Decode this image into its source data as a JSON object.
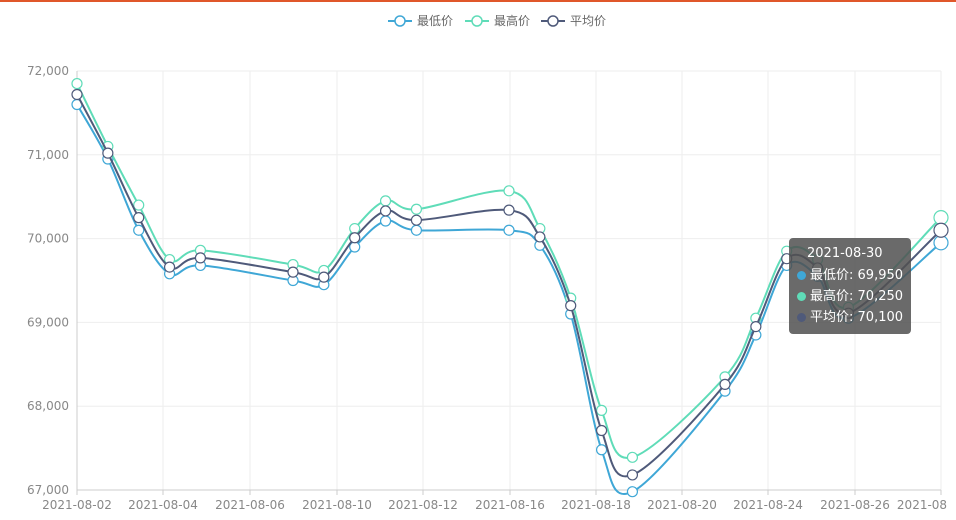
{
  "chart_data": {
    "type": "line",
    "title": "",
    "xlabel": "",
    "ylabel": "",
    "ylim": [
      67000,
      72000
    ],
    "y_ticks": [
      "67,000",
      "68,000",
      "69,000",
      "70,000",
      "71,000",
      "72,000"
    ],
    "x_tick_labels": [
      "2021-08-02",
      "2021-08-04",
      "2021-08-06",
      "2021-08-10",
      "2021-08-12",
      "2021-08-16",
      "2021-08-18",
      "2021-08-20",
      "2021-08-24",
      "2021-08-26",
      "2021-08"
    ],
    "x": [
      "2021-08-02",
      "2021-08-03",
      "2021-08-04",
      "2021-08-05",
      "2021-08-06",
      "2021-08-09",
      "2021-08-10",
      "2021-08-11",
      "2021-08-12",
      "2021-08-13",
      "2021-08-16",
      "2021-08-17",
      "2021-08-18",
      "2021-08-19",
      "2021-08-20",
      "2021-08-23",
      "2021-08-24",
      "2021-08-25",
      "2021-08-26",
      "2021-08-27",
      "2021-08-30"
    ],
    "grid": true,
    "legend_position": "top-center",
    "colors": {
      "最低价": "#3fa7d6",
      "最高价": "#5fdcb8",
      "平均价": "#4f5a7a",
      "grid": "#eeeeee",
      "axis": "#cccccc"
    },
    "series": [
      {
        "name": "最低价",
        "values": [
          71600,
          70950,
          70100,
          69580,
          69680,
          69500,
          69450,
          69900,
          70210,
          70100,
          70100,
          69920,
          69100,
          67480,
          66980,
          68180,
          68850,
          69680,
          69550,
          69050,
          69950
        ]
      },
      {
        "name": "最高价",
        "values": [
          71850,
          71100,
          70400,
          69750,
          69860,
          69690,
          69620,
          70120,
          70450,
          70350,
          70570,
          70120,
          69290,
          67950,
          67390,
          68350,
          69050,
          69850,
          69750,
          69180,
          70250
        ]
      },
      {
        "name": "平均价",
        "values": [
          71720,
          71020,
          70250,
          69660,
          69770,
          69600,
          69540,
          70010,
          70330,
          70220,
          70340,
          70020,
          69200,
          67710,
          67180,
          68260,
          68950,
          69760,
          69650,
          69110,
          70100
        ]
      }
    ]
  },
  "tooltip": {
    "date": "2021-08-30",
    "rows": [
      {
        "label": "最低价",
        "value": "69,950",
        "color": "#3fa7d6"
      },
      {
        "label": "最高价",
        "value": "70,250",
        "color": "#5fdcb8"
      },
      {
        "label": "平均价",
        "value": "70,100",
        "color": "#4f5a7a"
      }
    ]
  }
}
